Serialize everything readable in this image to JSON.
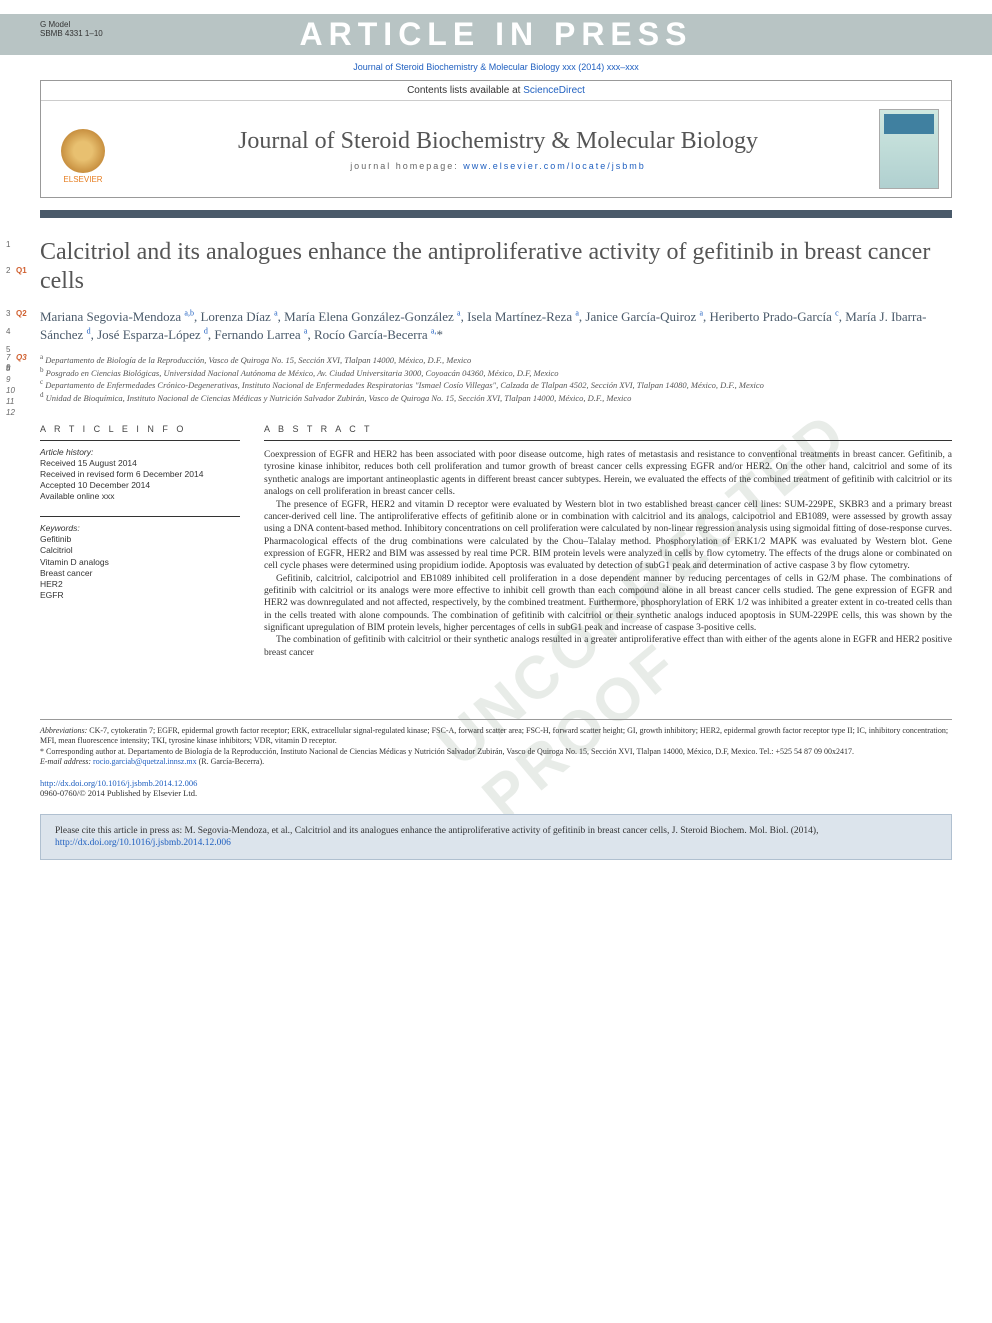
{
  "gmodel": {
    "label": "G Model",
    "code": "SBMB 4331 1–10"
  },
  "banner_text": "ARTICLE IN PRESS",
  "journal_ref_top": "Journal of Steroid Biochemistry & Molecular Biology xxx (2014) xxx–xxx",
  "header": {
    "contents_text": "Contents lists available at ",
    "contents_link": "ScienceDirect",
    "journal_name": "Journal of Steroid Biochemistry & Molecular Biology",
    "homepage_label": "journal homepage: ",
    "homepage_url": "www.elsevier.com/locate/jsbmb",
    "elsevier_label": "ELSEVIER"
  },
  "title": "Calcitriol and its analogues enhance the antiproliferative activity of gefitinib in breast cancer cells",
  "line_numbers_title": [
    "1",
    "2"
  ],
  "queries_title": [
    "Q1"
  ],
  "authors_html": "Mariana Segovia-Mendoza <sup>a,b</sup>, Lorenza Díaz <sup>a</sup>, María Elena González-González <sup>a</sup>, Isela Martínez-Reza <sup>a</sup>, Janice García-Quiroz <sup>a</sup>, Heriberto Prado-García <sup>c</sup>, María J. Ibarra-Sánchez <sup>d</sup>, José Esparza-López <sup>d</sup>, Fernando Larrea <sup>a</sup>, Rocío García-Becerra <sup>a,</sup>*",
  "line_numbers_authors": [
    "3",
    "4",
    "5",
    "6"
  ],
  "queries_authors": [
    "Q2"
  ],
  "affiliations": [
    {
      "sup": "a",
      "text": "Departamento de Biología de la Reproducción, Vasco de Quiroga No. 15, Sección XVI, Tlalpan 14000, México, D.F., Mexico"
    },
    {
      "sup": "b",
      "text": "Posgrado en Ciencias Biológicas, Universidad Nacional Autónoma de México, Av. Ciudad Universitaria 3000, Coyoacán 04360, México, D.F, Mexico"
    },
    {
      "sup": "c",
      "text": "Departamento de Enfermedades Crónico-Degenerativas, Instituto Nacional de Enfermedades Respiratorias \"Ismael Cosío Villegas\", Calzada de Tlalpan 4502, Sección XVI, Tlalpan 14080, México, D.F., Mexico"
    },
    {
      "sup": "d",
      "text": "Unidad de Bioquímica, Instituto Nacional de Ciencias Médicas y Nutrición Salvador Zubirán, Vasco de Quiroga No. 15, Sección XVI, Tlalpan 14000, México, D.F., Mexico"
    }
  ],
  "line_numbers_affil": [
    "7",
    "8",
    "9",
    "10",
    "11",
    "12"
  ],
  "queries_affil": [
    "Q3"
  ],
  "article_info_head": "A R T I C L E  I N F O",
  "history_label": "Article history:",
  "history": {
    "received": "Received 15 August 2014",
    "revised": "Received in revised form 6 December 2014",
    "accepted": "Accepted 10 December 2014",
    "online": "Available online xxx"
  },
  "keywords_label": "Keywords:",
  "keywords": [
    "Gefitinib",
    "Calcitriol",
    "Vitamin D analogs",
    "Breast cancer",
    "HER2",
    "EGFR"
  ],
  "abstract_head": "A B S T R A C T",
  "abstract_paragraphs": [
    "Coexpression of EGFR and HER2 has been associated with poor disease outcome, high rates of metastasis and resistance to conventional treatments in breast cancer. Gefitinib, a tyrosine kinase inhibitor, reduces both cell proliferation and tumor growth of breast cancer cells expressing EGFR and/or HER2. On the other hand, calcitriol and some of its synthetic analogs are important antineoplastic agents in different breast cancer subtypes. Herein, we evaluated the effects of the combined treatment of gefitinib with calcitriol or its analogs on cell proliferation in breast cancer cells.",
    "The presence of EGFR, HER2 and vitamin D receptor were evaluated by Western blot in two established breast cancer cell lines: SUM-229PE, SKBR3 and a primary breast cancer-derived cell line. The antiproliferative effects of gefitinib alone or in combination with calcitriol and its analogs, calcipotriol and EB1089, were assessed by growth assay using a DNA content-based method. Inhibitory concentrations on cell proliferation were calculated by non-linear regression analysis using sigmoidal fitting of dose-response curves. Pharmacological effects of the drug combinations were calculated by the Chou–Talalay method. Phosphorylation of ERK1/2 MAPK was evaluated by Western blot. Gene expression of EGFR, HER2 and BIM was assessed by real time PCR. BIM protein levels were analyzed in cells by flow cytometry. The effects of the drugs alone or combinated on cell cycle phases were determined using propidium iodide. Apoptosis was evaluated by detection of subG1 peak and determination of active caspase 3 by flow cytometry.",
    "Gefitinib, calcitriol, calcipotriol and EB1089 inhibited cell proliferation in a dose dependent manner by reducing percentages of cells in G2/M phase. The combinations of gefitinib with calcitriol or its analogs were more effective to inhibit cell growth than each compound alone in all breast cancer cells studied. The gene expression of EGFR and HER2 was downregulated and not affected, respectively, by the combined treatment. Furthermore, phosphorylation of ERK 1/2 was inhibited a greater extent in co-treated cells than in the cells treated with alone compounds. The combination of gefitinib with calcitriol or their synthetic analogs induced apoptosis in SUM-229PE cells, this was shown by the significant upregulation of BIM protein levels, higher percentages of cells in subG1 peak and increase of caspase 3-positive cells.",
    "The combination of gefitinib with calcitriol or their synthetic analogs resulted in a greater antiproliferative effect than with either of the agents alone in EGFR and HER2 positive breast cancer"
  ],
  "abbreviations_label": "Abbreviations:",
  "abbreviations_text": " CK-7, cytokeratin 7; EGFR, epidermal growth factor receptor; ERK, extracellular signal-regulated kinase; FSC-A, forward scatter area; FSC-H, forward scatter height; GI, growth inhibitory; HER2, epidermal growth factor receptor type II; IC, inhibitory concentration; MFI, mean fluorescence intensity; TKI, tyrosine kinase inhibitors; VDR, vitamin D receptor.",
  "corresponding_label": "* Corresponding author at. ",
  "corresponding_text": "Departamento de Biología de la Reproducción, Instituto Nacional de Ciencias Médicas y Nutrición Salvador Zubirán, Vasco de Quiroga No. 15, Sección XVI, Tlalpan 14000, México, D.F, Mexico. Tel.: +525 54 87 09 00x2417.",
  "email_label": "E-mail address: ",
  "email": "rocio.garciab@quetzal.innsz.mx",
  "email_person": " (R. García-Becerra).",
  "doi_url": "http://dx.doi.org/10.1016/j.jsbmb.2014.12.006",
  "copyright": "0960-0760/© 2014 Published by Elsevier Ltd.",
  "cite_text": "Please cite this article in press as: M. Segovia-Mendoza, et al., Calcitriol and its analogues enhance the antiproliferative activity of gefitinib in breast cancer cells, J. Steroid Biochem. Mol. Biol. (2014), ",
  "cite_url": "http://dx.doi.org/10.1016/j.jsbmb.2014.12.006",
  "watermark_diag": "UNCORRECTED PROOF",
  "colors": {
    "banner_bg": "#b8c4c4",
    "link": "#2060c0",
    "accent_bar": "#4a5a6a",
    "query": "#d06030",
    "cite_bg": "#dce4ec"
  }
}
